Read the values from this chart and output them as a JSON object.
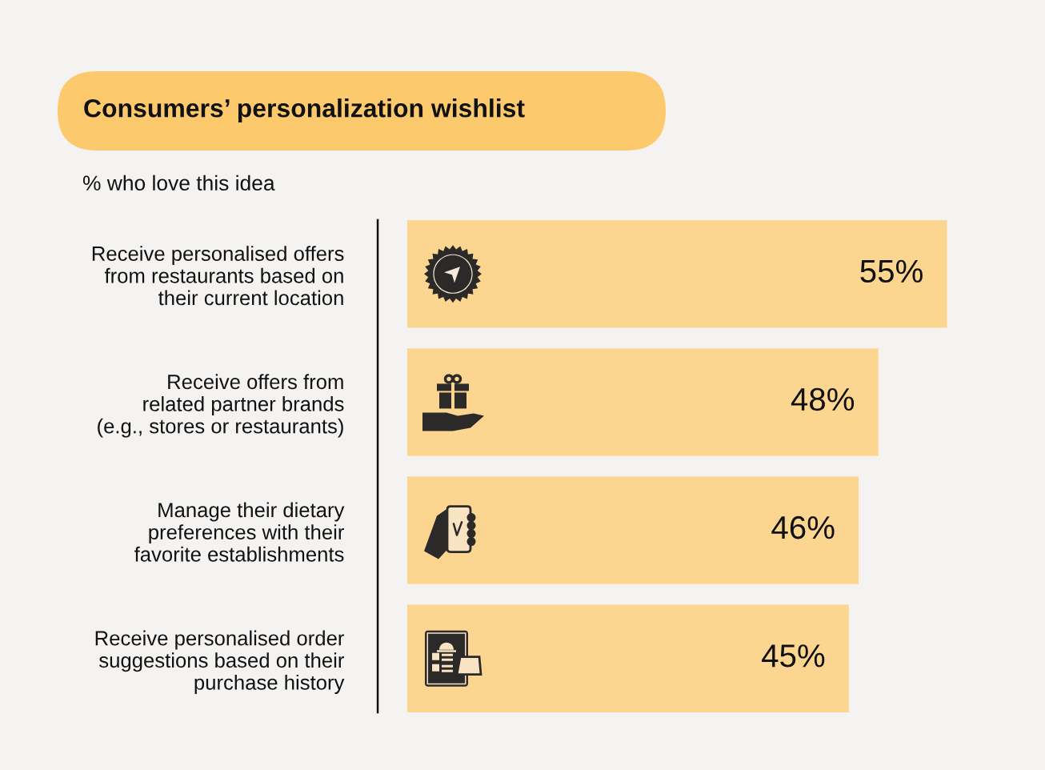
{
  "chart_data": {
    "type": "bar",
    "orientation": "horizontal",
    "title": "Consumers’ personalization wishlist",
    "subtitle": "% who love this idea",
    "categories": [
      "Receive personalised offers\nfrom restaurants based on\ntheir current location",
      "Receive offers from\nrelated partner brands\n(e.g., stores or restaurants)",
      "Manage their dietary\npreferences with their\nfavorite establishments",
      "Receive personalised order\nsuggestions based on their\npurchase history"
    ],
    "values": [
      55,
      48,
      46,
      45
    ],
    "value_labels": [
      "55%",
      "48%",
      "46%",
      "45%"
    ],
    "color": "#fcd690",
    "tick_labels": "y"
  }
}
